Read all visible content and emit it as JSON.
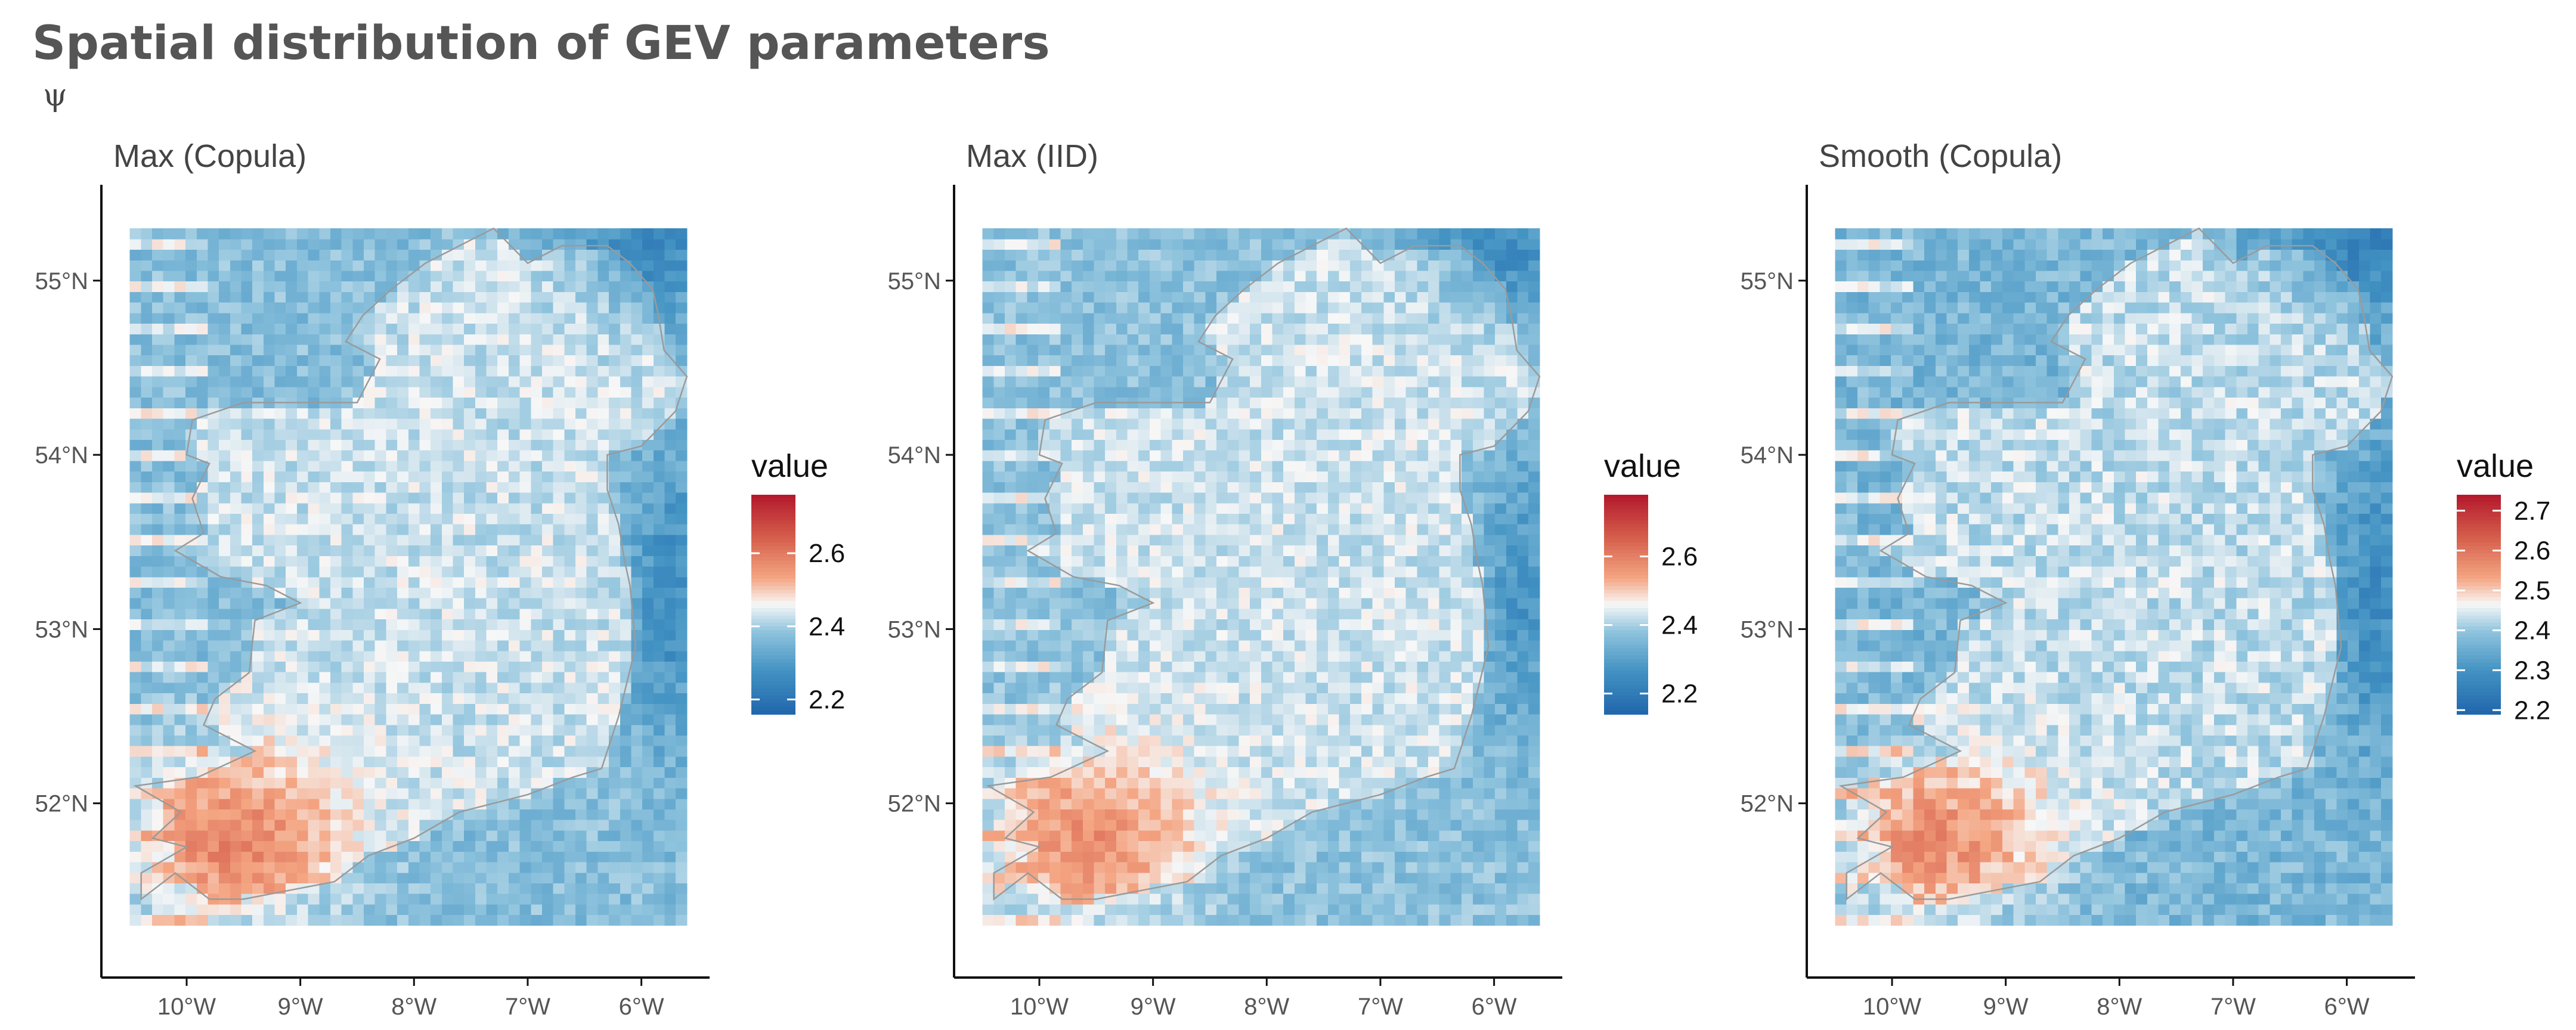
{
  "title": "Spatial distribution of GEV parameters",
  "subtitle": "ψ",
  "chart_data": [
    {
      "type": "heatmap",
      "panel_title": "Max (Copula)",
      "x": {
        "label": "",
        "ticks": [
          -10,
          -9,
          -8,
          -7,
          -6
        ],
        "tick_labels": [
          "10°W",
          "9°W",
          "8°W",
          "7°W",
          "6°W"
        ],
        "range": [
          -10.75,
          -5.4
        ]
      },
      "y": {
        "label": "",
        "ticks": [
          52,
          53,
          54,
          55
        ],
        "tick_labels": [
          "52°N",
          "53°N",
          "54°N",
          "55°N"
        ],
        "range": [
          51.0,
          55.55
        ]
      },
      "grid": false,
      "legend": {
        "title": "value",
        "position": "right",
        "ticks": [
          2.2,
          2.4,
          2.6
        ],
        "tick_labels": [
          "2.2",
          "2.4",
          "2.6"
        ],
        "range": [
          2.16,
          2.76
        ]
      },
      "field": {
        "lon_range": [
          -10.5,
          -5.6
        ],
        "lat_range": [
          51.3,
          55.3
        ],
        "land_mean": 2.43,
        "sea_mean": 2.37,
        "southwest_high": 2.58,
        "northeast_low": 2.25,
        "east_coast_low": 2.26
      }
    },
    {
      "type": "heatmap",
      "panel_title": "Max (IID)",
      "x": {
        "label": "",
        "ticks": [
          -10,
          -9,
          -8,
          -7,
          -6
        ],
        "tick_labels": [
          "10°W",
          "9°W",
          "8°W",
          "7°W",
          "6°W"
        ],
        "range": [
          -10.75,
          -5.4
        ]
      },
      "y": {
        "label": "",
        "ticks": [
          52,
          53,
          54,
          55
        ],
        "tick_labels": [
          "52°N",
          "53°N",
          "54°N",
          "55°N"
        ],
        "range": [
          51.0,
          55.55
        ]
      },
      "grid": false,
      "legend": {
        "title": "value",
        "position": "right",
        "ticks": [
          2.2,
          2.4,
          2.6
        ],
        "tick_labels": [
          "2.2",
          "2.4",
          "2.6"
        ],
        "range": [
          2.14,
          2.78
        ]
      },
      "field": {
        "lon_range": [
          -10.5,
          -5.6
        ],
        "lat_range": [
          51.3,
          55.3
        ],
        "land_mean": 2.43,
        "sea_mean": 2.37,
        "southwest_high": 2.57,
        "northeast_low": 2.25,
        "east_coast_low": 2.27
      }
    },
    {
      "type": "heatmap",
      "panel_title": "Smooth (Copula)",
      "x": {
        "label": "",
        "ticks": [
          -10,
          -9,
          -8,
          -7,
          -6
        ],
        "tick_labels": [
          "10°W",
          "9°W",
          "8°W",
          "7°W",
          "6°W"
        ],
        "range": [
          -10.75,
          -5.4
        ]
      },
      "y": {
        "label": "",
        "ticks": [
          52,
          53,
          54,
          55
        ],
        "tick_labels": [
          "52°N",
          "53°N",
          "54°N",
          "55°N"
        ],
        "range": [
          51.0,
          55.55
        ]
      },
      "grid": false,
      "legend": {
        "title": "value",
        "position": "right",
        "ticks": [
          2.2,
          2.3,
          2.4,
          2.5,
          2.6,
          2.7
        ],
        "tick_labels": [
          "2.2",
          "2.3",
          "2.4",
          "2.5",
          "2.6",
          "2.7"
        ],
        "range": [
          2.19,
          2.74
        ]
      },
      "field": {
        "lon_range": [
          -10.5,
          -5.6
        ],
        "lat_range": [
          51.3,
          55.3
        ],
        "land_mean": 2.43,
        "sea_mean": 2.37,
        "southwest_high": 2.56,
        "northeast_low": 2.26,
        "east_coast_low": 2.28
      }
    }
  ],
  "coastline": [
    [
      -10.4,
      51.45
    ],
    [
      -10.1,
      51.6
    ],
    [
      -9.8,
      51.45
    ],
    [
      -9.5,
      51.45
    ],
    [
      -9.1,
      51.5
    ],
    [
      -8.7,
      51.55
    ],
    [
      -8.4,
      51.7
    ],
    [
      -8.0,
      51.8
    ],
    [
      -7.6,
      51.95
    ],
    [
      -7.0,
      52.05
    ],
    [
      -6.6,
      52.15
    ],
    [
      -6.35,
      52.2
    ],
    [
      -6.2,
      52.5
    ],
    [
      -6.05,
      52.9
    ],
    [
      -6.1,
      53.25
    ],
    [
      -6.15,
      53.4
    ],
    [
      -6.2,
      53.6
    ],
    [
      -6.3,
      53.8
    ],
    [
      -6.3,
      54.0
    ],
    [
      -6.0,
      54.05
    ],
    [
      -5.7,
      54.25
    ],
    [
      -5.6,
      54.45
    ],
    [
      -5.8,
      54.6
    ],
    [
      -5.85,
      54.8
    ],
    [
      -5.9,
      54.95
    ],
    [
      -6.1,
      55.1
    ],
    [
      -6.3,
      55.2
    ],
    [
      -6.7,
      55.2
    ],
    [
      -7.0,
      55.1
    ],
    [
      -7.3,
      55.3
    ],
    [
      -7.6,
      55.2
    ],
    [
      -7.9,
      55.1
    ],
    [
      -8.2,
      54.95
    ],
    [
      -8.45,
      54.8
    ],
    [
      -8.6,
      54.65
    ],
    [
      -8.3,
      54.55
    ],
    [
      -8.5,
      54.3
    ],
    [
      -9.0,
      54.3
    ],
    [
      -9.5,
      54.3
    ],
    [
      -9.95,
      54.2
    ],
    [
      -10.0,
      54.0
    ],
    [
      -9.8,
      53.95
    ],
    [
      -9.95,
      53.75
    ],
    [
      -9.85,
      53.55
    ],
    [
      -10.1,
      53.45
    ],
    [
      -9.7,
      53.3
    ],
    [
      -9.3,
      53.25
    ],
    [
      -9.0,
      53.15
    ],
    [
      -9.4,
      53.05
    ],
    [
      -9.45,
      52.75
    ],
    [
      -9.75,
      52.6
    ],
    [
      -9.85,
      52.45
    ],
    [
      -9.4,
      52.3
    ],
    [
      -9.9,
      52.15
    ],
    [
      -10.45,
      52.1
    ],
    [
      -10.05,
      51.95
    ],
    [
      -10.3,
      51.8
    ],
    [
      -10.0,
      51.75
    ],
    [
      -10.4,
      51.6
    ],
    [
      -10.4,
      51.45
    ]
  ]
}
